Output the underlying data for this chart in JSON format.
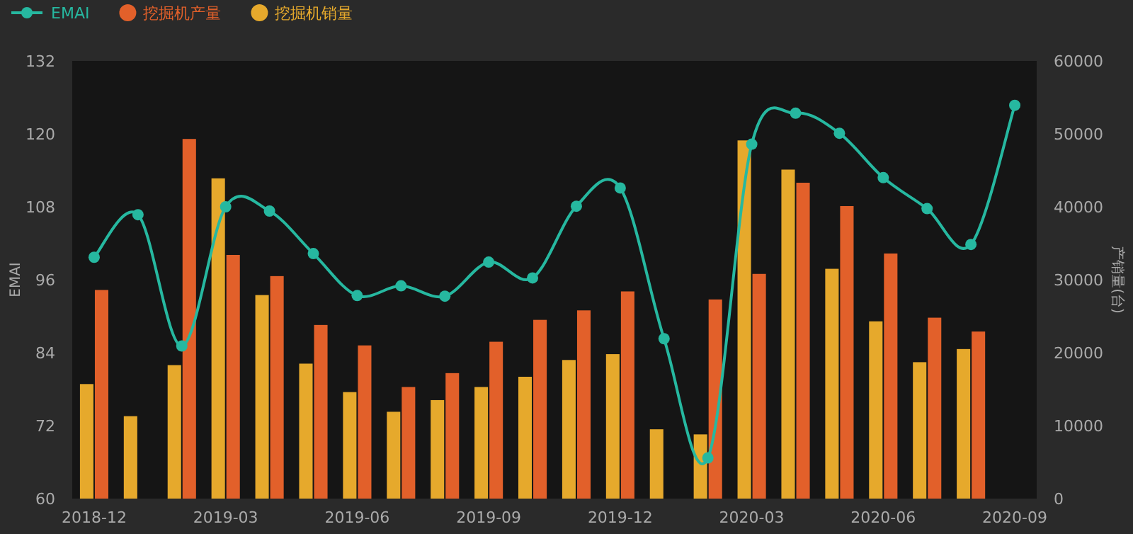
{
  "chart_data": {
    "type": "bar",
    "ylabel": "EMAI",
    "y2label": "产销量(台)",
    "categories": [
      "2018-12",
      null,
      null,
      "2019-03",
      null,
      null,
      "2019-06",
      null,
      null,
      "2019-09",
      null,
      null,
      "2019-12",
      null,
      null,
      "2020-03",
      null,
      null,
      "2020-06",
      null,
      null,
      "2020-09"
    ],
    "ylim": [
      60,
      132
    ],
    "yticks": [
      60,
      72,
      84,
      96,
      108,
      120,
      132
    ],
    "y2lim": [
      0,
      60000
    ],
    "y2ticks": [
      0,
      10000,
      20000,
      30000,
      40000,
      50000,
      60000
    ],
    "legend": "top left",
    "marker": "circle",
    "series": [
      {
        "name": "EMAI",
        "type": "line",
        "axis": "y",
        "color": "#26b8a0",
        "values": [
          99.7,
          106.7,
          85.1,
          108.0,
          107.3,
          100.3,
          93.4,
          95.0,
          93.3,
          98.9,
          96.3,
          108.1,
          111.1,
          86.3,
          66.7,
          118.3,
          123.4,
          120.1,
          112.8,
          107.7,
          101.8,
          124.7
        ]
      },
      {
        "name": "挖掘机产量",
        "axis": "y2",
        "color": "#e2602a",
        "values": [
          28600,
          null,
          49300,
          33400,
          30500,
          23800,
          21000,
          15300,
          17200,
          21500,
          24500,
          25800,
          28400,
          null,
          27300,
          30800,
          43300,
          40100,
          33600,
          24800,
          22900,
          null
        ]
      },
      {
        "name": "挖掘机销量",
        "axis": "y2",
        "color": "#e6a92c",
        "values": [
          15700,
          11300,
          18300,
          43900,
          27900,
          18500,
          14600,
          11900,
          13500,
          15300,
          16700,
          19000,
          19800,
          9500,
          8800,
          49100,
          45100,
          31500,
          24300,
          18700,
          20500,
          null
        ]
      }
    ]
  }
}
